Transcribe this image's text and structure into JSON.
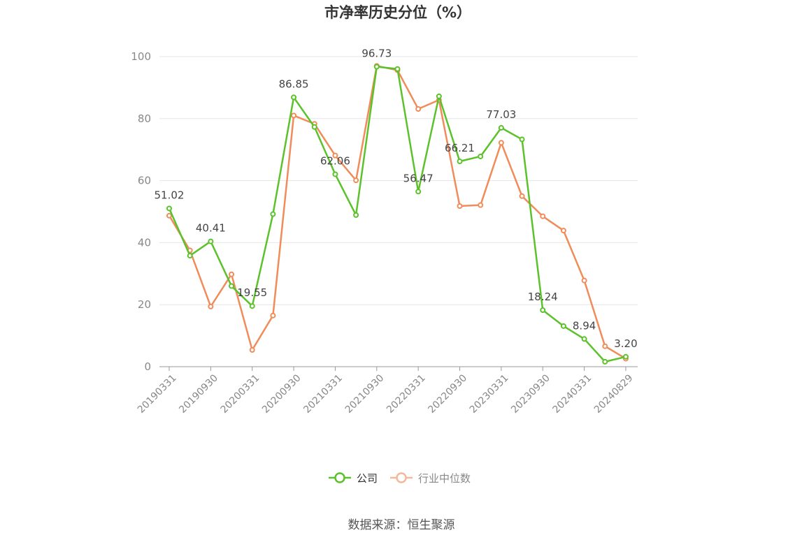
{
  "title": "市净率历史分位（%）",
  "source": "数据来源：恒生聚源",
  "colors": {
    "company": "#5cc22b",
    "industry": "#f08c5a",
    "industry_legend": "#f5b89a",
    "grid": "#e6e6e6",
    "axis": "#999999"
  },
  "chart_data": {
    "type": "line",
    "x": [
      "20190331",
      "20190630",
      "20190930",
      "20191231",
      "20200331",
      "20200630",
      "20200930",
      "20201231",
      "20210331",
      "20210630",
      "20210930",
      "20211231",
      "20220331",
      "20220630",
      "20220930",
      "20221231",
      "20230331",
      "20230630",
      "20230930",
      "20231231",
      "20240331",
      "20240630",
      "20240829"
    ],
    "x_tick_labels": [
      "20190331",
      "20190930",
      "20200331",
      "20200930",
      "20210331",
      "20210930",
      "20220331",
      "20220930",
      "20230331",
      "20230930",
      "20240331",
      "20240829"
    ],
    "y_ticks": [
      "0",
      "20",
      "40",
      "60",
      "80",
      "100"
    ],
    "ylim": [
      0,
      100
    ],
    "grid": true,
    "legend_position": "bottom",
    "series": [
      {
        "name": "公司",
        "values": [
          51.02,
          35.8,
          40.41,
          26.0,
          19.55,
          49.2,
          86.85,
          77.3,
          62.06,
          48.9,
          96.73,
          96.0,
          56.47,
          87.2,
          66.21,
          67.8,
          77.03,
          73.3,
          18.24,
          13.1,
          8.94,
          1.6,
          3.2
        ]
      },
      {
        "name": "行业中位数",
        "values": [
          48.7,
          37.5,
          19.4,
          29.8,
          5.4,
          16.5,
          81.0,
          78.3,
          68.1,
          60.1,
          97.0,
          95.6,
          83.1,
          86.0,
          51.8,
          52.1,
          72.2,
          55.0,
          48.5,
          43.9,
          27.8,
          6.6,
          2.6
        ]
      }
    ],
    "data_labels": [
      {
        "series": 0,
        "index": 0,
        "text": "51.02"
      },
      {
        "series": 0,
        "index": 2,
        "text": "40.41"
      },
      {
        "series": 0,
        "index": 4,
        "text": "19.55"
      },
      {
        "series": 0,
        "index": 6,
        "text": "86.85"
      },
      {
        "series": 0,
        "index": 8,
        "text": "62.06"
      },
      {
        "series": 0,
        "index": 10,
        "text": "96.73"
      },
      {
        "series": 0,
        "index": 12,
        "text": "56.47"
      },
      {
        "series": 0,
        "index": 14,
        "text": "66.21"
      },
      {
        "series": 0,
        "index": 16,
        "text": "77.03"
      },
      {
        "series": 0,
        "index": 18,
        "text": "18.24"
      },
      {
        "series": 0,
        "index": 20,
        "text": "8.94"
      },
      {
        "series": 0,
        "index": 22,
        "text": "3.20"
      }
    ]
  }
}
